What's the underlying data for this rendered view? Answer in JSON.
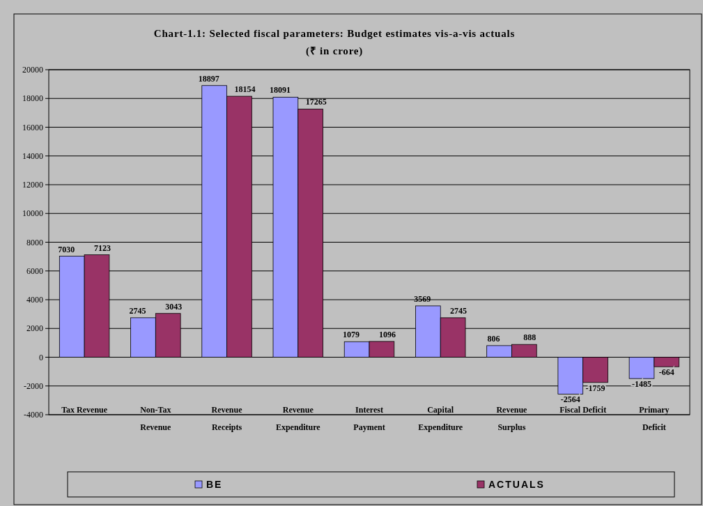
{
  "chart_data": {
    "type": "bar",
    "title": "Chart-1.1: Selected fiscal parameters: Budget estimates vis-a-vis actuals",
    "subtitle": "(₹  in crore)",
    "categories": [
      "Tax Revenue",
      "Non-Tax Revenue",
      "Revenue Receipts",
      "Revenue Expenditure",
      "Interest Payment",
      "Capital Expenditure",
      "Revenue Surplus",
      "Fiscal Deficit",
      "Primary Deficit"
    ],
    "series": [
      {
        "name": "BE",
        "color": "#9999ff",
        "values": [
          7030,
          2745,
          18897,
          18091,
          1079,
          3569,
          806,
          -2564,
          -1485
        ]
      },
      {
        "name": "ACTUALS",
        "color": "#993366",
        "values": [
          7123,
          3043,
          18154,
          17265,
          1096,
          2745,
          888,
          -1759,
          -664
        ]
      }
    ],
    "ylim": [
      -4000,
      20000
    ],
    "yticks": [
      -4000,
      -2000,
      0,
      2000,
      4000,
      6000,
      8000,
      10000,
      12000,
      14000,
      16000,
      18000,
      20000
    ],
    "grid": "y",
    "data_labels": true,
    "legend": "bottom"
  }
}
